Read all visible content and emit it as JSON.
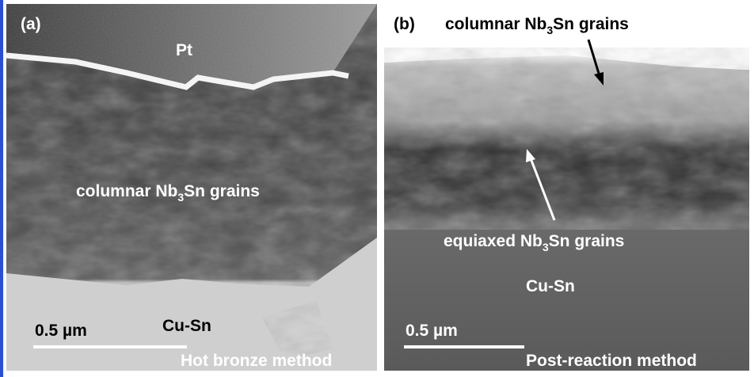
{
  "panels": [
    {
      "label": "(a)",
      "pt_label": "Pt",
      "grain_label": [
        "columnar Nb",
        "3",
        "Sn grains"
      ],
      "matrix_label": "Cu-Sn",
      "scale_bar": "0.5 µm",
      "method": "Hot bronze method"
    },
    {
      "label": "(b)",
      "top_grain_label": [
        "columnar Nb",
        "3",
        "Sn grains"
      ],
      "bottom_grain_label": [
        "equiaxed Nb",
        "3",
        "Sn grains"
      ],
      "matrix_label": "Cu-Sn",
      "scale_bar": "0.5 µm",
      "method": "Post-reaction method"
    }
  ]
}
